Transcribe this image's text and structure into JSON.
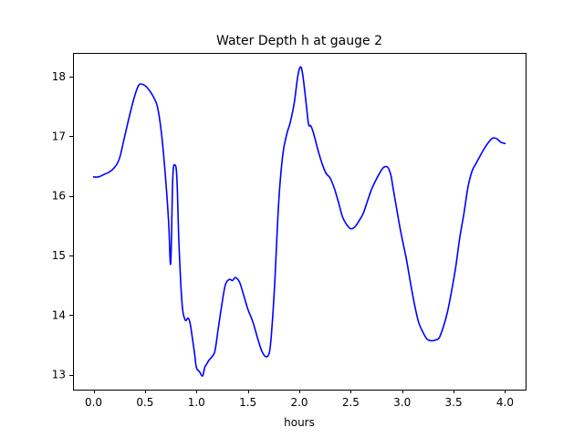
{
  "chart_data": {
    "type": "line",
    "title": "Water Depth h at gauge 2",
    "xlabel": "hours",
    "ylabel": "",
    "xlim": [
      -0.2,
      4.2
    ],
    "ylim": [
      12.75,
      18.4
    ],
    "xticks": [
      0.0,
      0.5,
      1.0,
      1.5,
      2.0,
      2.5,
      3.0,
      3.5,
      4.0
    ],
    "xtick_labels": [
      "0.0",
      "0.5",
      "1.0",
      "1.5",
      "2.0",
      "2.5",
      "3.0",
      "3.5",
      "4.0"
    ],
    "yticks": [
      13,
      14,
      15,
      16,
      17,
      18
    ],
    "ytick_labels": [
      "13",
      "14",
      "15",
      "16",
      "17",
      "18"
    ],
    "grid": false,
    "series": [
      {
        "color": "#0000ff",
        "x": [
          0.0,
          0.05,
          0.1,
          0.15,
          0.2,
          0.25,
          0.3,
          0.35,
          0.4,
          0.44,
          0.48,
          0.52,
          0.57,
          0.62,
          0.66,
          0.7,
          0.73,
          0.75,
          0.77,
          0.79,
          0.81,
          0.83,
          0.86,
          0.89,
          0.92,
          0.94,
          0.96,
          0.98,
          1.0,
          1.03,
          1.06,
          1.08,
          1.1,
          1.12,
          1.15,
          1.18,
          1.21,
          1.24,
          1.28,
          1.32,
          1.35,
          1.38,
          1.42,
          1.46,
          1.5,
          1.55,
          1.6,
          1.64,
          1.68,
          1.71,
          1.73,
          1.76,
          1.8,
          1.84,
          1.88,
          1.91,
          1.95,
          1.98,
          2.0,
          2.02,
          2.04,
          2.07,
          2.09,
          2.11,
          2.13,
          2.15,
          2.18,
          2.22,
          2.26,
          2.3,
          2.34,
          2.38,
          2.42,
          2.46,
          2.5,
          2.54,
          2.58,
          2.62,
          2.66,
          2.7,
          2.74,
          2.78,
          2.82,
          2.86,
          2.89,
          2.91,
          2.94,
          2.97,
          3.0,
          3.04,
          3.08,
          3.12,
          3.16,
          3.2,
          3.24,
          3.28,
          3.32,
          3.36,
          3.4,
          3.44,
          3.48,
          3.52,
          3.56,
          3.6,
          3.64,
          3.68,
          3.72,
          3.76,
          3.8,
          3.84,
          3.88,
          3.92,
          3.96,
          4.0
        ],
        "values": [
          16.32,
          16.32,
          16.36,
          16.4,
          16.47,
          16.62,
          16.98,
          17.35,
          17.68,
          17.86,
          17.87,
          17.82,
          17.7,
          17.5,
          17.05,
          16.3,
          15.55,
          14.87,
          16.3,
          16.52,
          16.3,
          15.2,
          14.2,
          13.92,
          13.95,
          13.85,
          13.62,
          13.38,
          13.12,
          13.05,
          12.98,
          13.12,
          13.18,
          13.24,
          13.3,
          13.4,
          13.75,
          14.1,
          14.5,
          14.6,
          14.58,
          14.63,
          14.55,
          14.33,
          14.1,
          13.88,
          13.58,
          13.38,
          13.3,
          13.38,
          13.7,
          14.5,
          15.9,
          16.7,
          17.05,
          17.22,
          17.55,
          17.95,
          18.13,
          18.15,
          17.95,
          17.5,
          17.2,
          17.18,
          17.1,
          16.98,
          16.78,
          16.55,
          16.38,
          16.3,
          16.13,
          15.9,
          15.65,
          15.52,
          15.45,
          15.48,
          15.58,
          15.7,
          15.9,
          16.1,
          16.25,
          16.38,
          16.48,
          16.48,
          16.35,
          16.15,
          15.85,
          15.55,
          15.28,
          14.95,
          14.55,
          14.18,
          13.88,
          13.72,
          13.6,
          13.57,
          13.58,
          13.62,
          13.8,
          14.05,
          14.4,
          14.8,
          15.3,
          15.7,
          16.15,
          16.42,
          16.55,
          16.68,
          16.8,
          16.9,
          16.97,
          16.96,
          16.9,
          16.88
        ]
      }
    ]
  }
}
